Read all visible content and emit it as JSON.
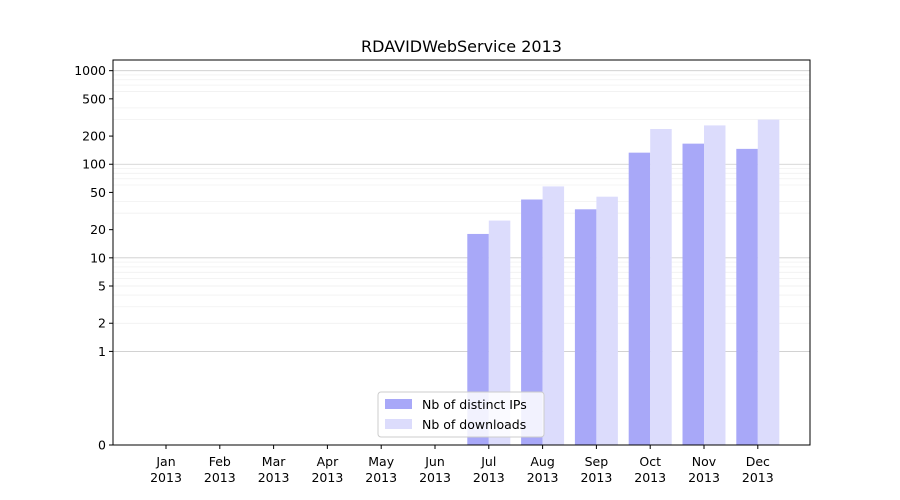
{
  "chart_data": {
    "type": "bar",
    "title": "RDAVIDWebService 2013",
    "xlabel": "",
    "ylabel": "",
    "yscale": "symlog",
    "ylim": [
      0,
      1300
    ],
    "grid": "y",
    "legend_position": "lower-center",
    "categories": [
      [
        "Jan",
        "2013"
      ],
      [
        "Feb",
        "2013"
      ],
      [
        "Mar",
        "2013"
      ],
      [
        "Apr",
        "2013"
      ],
      [
        "May",
        "2013"
      ],
      [
        "Jun",
        "2013"
      ],
      [
        "Jul",
        "2013"
      ],
      [
        "Aug",
        "2013"
      ],
      [
        "Sep",
        "2013"
      ],
      [
        "Oct",
        "2013"
      ],
      [
        "Nov",
        "2013"
      ],
      [
        "Dec",
        "2013"
      ]
    ],
    "yticks": [
      {
        "value": 0,
        "label": "0"
      },
      {
        "value": 1,
        "label": "1"
      },
      {
        "value": 2,
        "label": "2"
      },
      {
        "value": 5,
        "label": "5"
      },
      {
        "value": 10,
        "label": "10"
      },
      {
        "value": 20,
        "label": "20"
      },
      {
        "value": 50,
        "label": "50"
      },
      {
        "value": 100,
        "label": "100"
      },
      {
        "value": 200,
        "label": "200"
      },
      {
        "value": 500,
        "label": "500"
      },
      {
        "value": 1000,
        "label": "1000"
      }
    ],
    "series": [
      {
        "name": "Nb of distinct IPs",
        "color": "#a8a8f8",
        "values": [
          0,
          0,
          0,
          0,
          0,
          0,
          18,
          42,
          33,
          133,
          166,
          146
        ]
      },
      {
        "name": "Nb of downloads",
        "color": "#dcdcfc",
        "values": [
          0,
          0,
          0,
          0,
          0,
          0,
          25,
          58,
          45,
          238,
          260,
          300
        ]
      }
    ]
  }
}
